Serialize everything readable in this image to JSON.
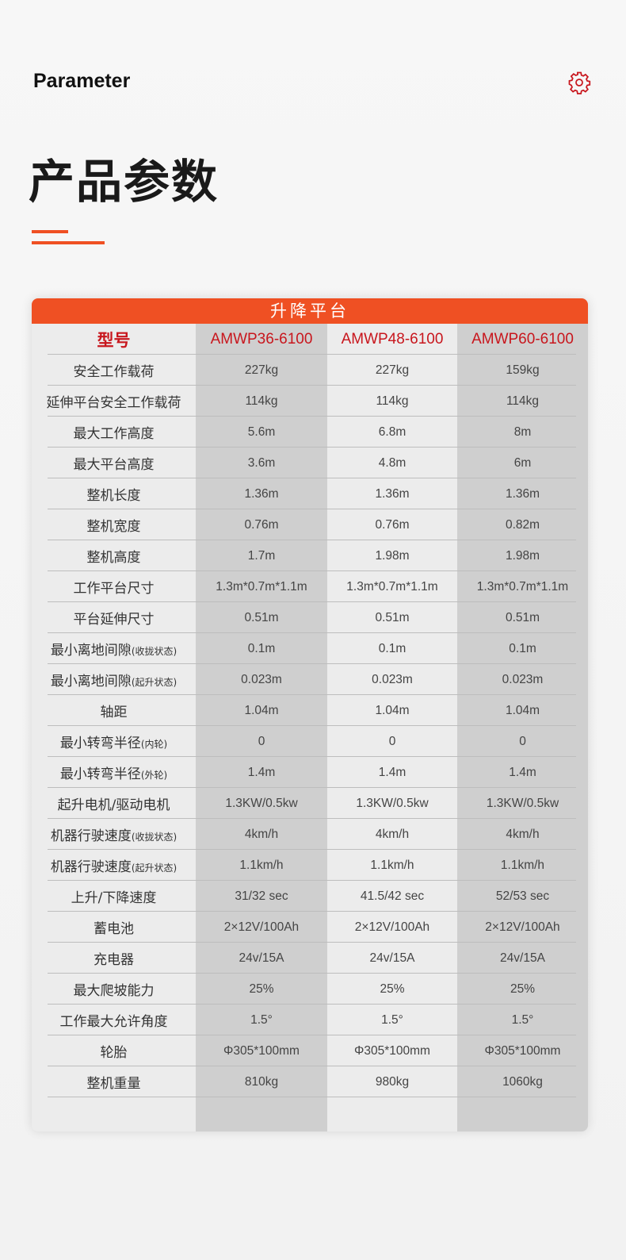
{
  "header": {
    "en_title": "Parameter",
    "title": "产品参数",
    "icon": "gear-icon",
    "accent": "#ef5023"
  },
  "table": {
    "category": "升降平台",
    "model_label": "型号",
    "models": [
      "AMWP36-6100",
      "AMWP48-6100",
      "AMWP60-6100"
    ],
    "rows": [
      {
        "label": "安全工作载荷",
        "sub": "",
        "values": [
          "227kg",
          "227kg",
          "159kg"
        ]
      },
      {
        "label": "延伸平台安全工作载荷",
        "sub": "",
        "values": [
          "114kg",
          "114kg",
          "114kg"
        ]
      },
      {
        "label": "最大工作高度",
        "sub": "",
        "values": [
          "5.6m",
          "6.8m",
          "8m"
        ]
      },
      {
        "label": "最大平台高度",
        "sub": "",
        "values": [
          "3.6m",
          "4.8m",
          "6m"
        ]
      },
      {
        "label": "整机长度",
        "sub": "",
        "values": [
          "1.36m",
          "1.36m",
          "1.36m"
        ]
      },
      {
        "label": "整机宽度",
        "sub": "",
        "values": [
          "0.76m",
          "0.76m",
          "0.82m"
        ]
      },
      {
        "label": "整机高度",
        "sub": "",
        "values": [
          "1.7m",
          "1.98m",
          "1.98m"
        ]
      },
      {
        "label": "工作平台尺寸",
        "sub": "",
        "values": [
          "1.3m*0.7m*1.1m",
          "1.3m*0.7m*1.1m",
          "1.3m*0.7m*1.1m"
        ]
      },
      {
        "label": "平台延伸尺寸",
        "sub": "",
        "values": [
          "0.51m",
          "0.51m",
          "0.51m"
        ]
      },
      {
        "label": "最小离地间隙",
        "sub": "(收拢状态)",
        "values": [
          "0.1m",
          "0.1m",
          "0.1m"
        ]
      },
      {
        "label": "最小离地间隙",
        "sub": "(起升状态)",
        "values": [
          "0.023m",
          "0.023m",
          "0.023m"
        ]
      },
      {
        "label": "轴距",
        "sub": "",
        "values": [
          "1.04m",
          "1.04m",
          "1.04m"
        ]
      },
      {
        "label": "最小转弯半径",
        "sub": "(内轮)",
        "values": [
          "0",
          "0",
          "0"
        ]
      },
      {
        "label": "最小转弯半径",
        "sub": "(外轮)",
        "values": [
          "1.4m",
          "1.4m",
          "1.4m"
        ]
      },
      {
        "label": "起升电机/驱动电机",
        "sub": "",
        "values": [
          "1.3KW/0.5kw",
          "1.3KW/0.5kw",
          "1.3KW/0.5kw"
        ]
      },
      {
        "label": "机器行驶速度",
        "sub": "(收拢状态)",
        "values": [
          "4km/h",
          "4km/h",
          "4km/h"
        ]
      },
      {
        "label": "机器行驶速度",
        "sub": "(起升状态)",
        "values": [
          "1.1km/h",
          "1.1km/h",
          "1.1km/h"
        ]
      },
      {
        "label": "上升/下降速度",
        "sub": "",
        "values": [
          "31/32 sec",
          "41.5/42 sec",
          "52/53 sec"
        ]
      },
      {
        "label": "蓄电池",
        "sub": "",
        "values": [
          "2×12V/100Ah",
          "2×12V/100Ah",
          "2×12V/100Ah"
        ]
      },
      {
        "label": "充电器",
        "sub": "",
        "values": [
          "24v/15A",
          "24v/15A",
          "24v/15A"
        ]
      },
      {
        "label": "最大爬坡能力",
        "sub": "",
        "values": [
          "25%",
          "25%",
          "25%"
        ]
      },
      {
        "label": "工作最大允许角度",
        "sub": "",
        "values": [
          "1.5°",
          "1.5°",
          "1.5°"
        ]
      },
      {
        "label": "轮胎",
        "sub": "",
        "values": [
          "Φ305*100mm",
          "Φ305*100mm",
          "Φ305*100mm"
        ]
      },
      {
        "label": "整机重量",
        "sub": "",
        "values": [
          "810kg",
          "980kg",
          "1060kg"
        ]
      }
    ]
  }
}
